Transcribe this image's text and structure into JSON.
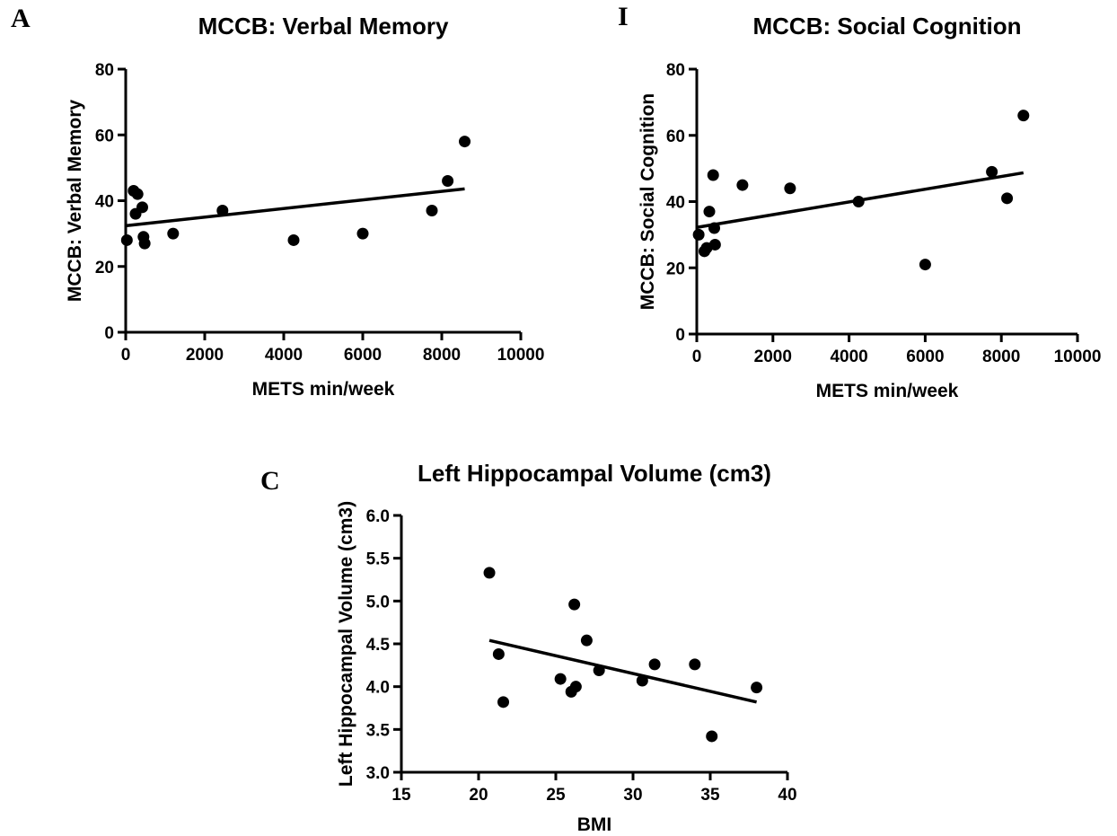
{
  "chart_data": [
    {
      "panel": "A",
      "type": "scatter",
      "title": "MCCB: Verbal Memory",
      "xlabel": "METS min/week",
      "ylabel": "MCCB: Verbal Memory",
      "xlim": [
        0,
        10000
      ],
      "ylim": [
        0,
        80
      ],
      "xticks": [
        "0",
        "2000",
        "4000",
        "6000",
        "8000",
        "10000"
      ],
      "yticks": [
        "0",
        "20",
        "40",
        "60",
        "80"
      ],
      "grid": false,
      "points": [
        {
          "x": 30,
          "y": 28
        },
        {
          "x": 200,
          "y": 43
        },
        {
          "x": 250,
          "y": 36
        },
        {
          "x": 300,
          "y": 42
        },
        {
          "x": 420,
          "y": 38
        },
        {
          "x": 450,
          "y": 29
        },
        {
          "x": 480,
          "y": 27
        },
        {
          "x": 1200,
          "y": 30
        },
        {
          "x": 2450,
          "y": 37
        },
        {
          "x": 4250,
          "y": 28
        },
        {
          "x": 6000,
          "y": 30
        },
        {
          "x": 7750,
          "y": 37
        },
        {
          "x": 8150,
          "y": 46
        },
        {
          "x": 8580,
          "y": 58
        }
      ],
      "fit_line": {
        "x": [
          0,
          8580
        ],
        "y": [
          32.4,
          43.6
        ]
      }
    },
    {
      "panel": "I",
      "type": "scatter",
      "title": "MCCB: Social Cognition",
      "xlabel": "METS min/week",
      "ylabel": "MCCB: Social Cognition",
      "xlim": [
        0,
        10000
      ],
      "ylim": [
        0,
        80
      ],
      "xticks": [
        "0",
        "2000",
        "4000",
        "6000",
        "8000",
        "10000"
      ],
      "yticks": [
        "0",
        "20",
        "40",
        "60",
        "80"
      ],
      "grid": false,
      "points": [
        {
          "x": 50,
          "y": 30
        },
        {
          "x": 200,
          "y": 25
        },
        {
          "x": 260,
          "y": 26
        },
        {
          "x": 330,
          "y": 37
        },
        {
          "x": 430,
          "y": 48
        },
        {
          "x": 460,
          "y": 32
        },
        {
          "x": 480,
          "y": 27
        },
        {
          "x": 1200,
          "y": 45
        },
        {
          "x": 2450,
          "y": 44
        },
        {
          "x": 4250,
          "y": 40
        },
        {
          "x": 6000,
          "y": 21
        },
        {
          "x": 7750,
          "y": 49
        },
        {
          "x": 8150,
          "y": 41
        },
        {
          "x": 8580,
          "y": 66
        }
      ],
      "fit_line": {
        "x": [
          0,
          8580
        ],
        "y": [
          32.2,
          48.7
        ]
      }
    },
    {
      "panel": "C",
      "type": "scatter",
      "title": "Left Hippocampal Volume (cm3)",
      "xlabel": "BMI",
      "ylabel": "Left Hippocampal Volume (cm3)",
      "xlim": [
        15,
        40
      ],
      "ylim": [
        3.0,
        6.0
      ],
      "xticks": [
        "15",
        "20",
        "25",
        "30",
        "35",
        "40"
      ],
      "yticks": [
        "3.0",
        "3.5",
        "4.0",
        "4.5",
        "5.0",
        "5.5",
        "6.0"
      ],
      "grid": false,
      "points": [
        {
          "x": 20.7,
          "y": 5.33
        },
        {
          "x": 21.3,
          "y": 4.38
        },
        {
          "x": 21.6,
          "y": 3.82
        },
        {
          "x": 25.3,
          "y": 4.09
        },
        {
          "x": 26.0,
          "y": 3.94
        },
        {
          "x": 26.2,
          "y": 4.96
        },
        {
          "x": 26.3,
          "y": 4.0
        },
        {
          "x": 27.0,
          "y": 4.54
        },
        {
          "x": 27.8,
          "y": 4.19
        },
        {
          "x": 30.6,
          "y": 4.07
        },
        {
          "x": 31.4,
          "y": 4.26
        },
        {
          "x": 34.0,
          "y": 4.26
        },
        {
          "x": 35.1,
          "y": 3.42
        },
        {
          "x": 38.0,
          "y": 3.99
        }
      ],
      "fit_line": {
        "x": [
          20.7,
          38.0
        ],
        "y": [
          4.54,
          3.82
        ]
      }
    }
  ]
}
